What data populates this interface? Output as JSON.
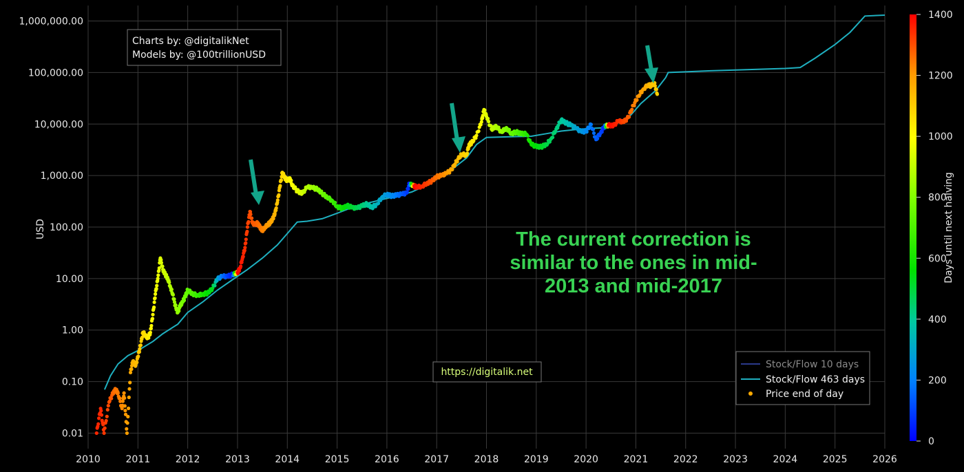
{
  "chart_data": {
    "type": "scatter",
    "title": "",
    "xlabel": "",
    "ylabel": "USD",
    "xlim": [
      2010,
      2026
    ],
    "ylim": [
      0.005,
      2000000
    ],
    "y_scale": "log",
    "grid": true,
    "x_ticks": [
      "2010",
      "2011",
      "2012",
      "2013",
      "2014",
      "2015",
      "2016",
      "2017",
      "2018",
      "2019",
      "2020",
      "2021",
      "2022",
      "2023",
      "2024",
      "2025",
      "2026"
    ],
    "y_ticks": [
      {
        "value": 0.01,
        "label": "0.01"
      },
      {
        "value": 0.1,
        "label": "0.10"
      },
      {
        "value": 1,
        "label": "1.00"
      },
      {
        "value": 10,
        "label": "10.00"
      },
      {
        "value": 100,
        "label": "100.00"
      },
      {
        "value": 1000,
        "label": "1,000.00"
      },
      {
        "value": 10000,
        "label": "10,000.00"
      },
      {
        "value": 100000,
        "label": "100,000.00"
      },
      {
        "value": 1000000,
        "label": "1,000,000.00"
      }
    ],
    "colorbar": {
      "title": "Days until next halving",
      "range": [
        0,
        1400
      ],
      "ticks": [
        0,
        200,
        400,
        600,
        800,
        1000,
        1200,
        1400
      ],
      "colorscale": [
        "#0000ff",
        "#0080ff",
        "#00c8a0",
        "#00e000",
        "#80ff00",
        "#ffff00",
        "#ff9900",
        "#ff0000"
      ]
    },
    "legend": {
      "position": "bottom-right",
      "entries": [
        {
          "name": "Stock/Flow 10 days",
          "color": "#2b3a8c",
          "kind": "line"
        },
        {
          "name": "Stock/Flow 463 days",
          "color": "#1fb0c0",
          "kind": "line"
        },
        {
          "name": "Price end of day",
          "color": "#ffaa00",
          "kind": "dot"
        }
      ]
    },
    "series": [
      {
        "name": "Stock/Flow 463 days",
        "kind": "line",
        "color": "#1fb0c0",
        "points": [
          [
            2010.33,
            0.07
          ],
          [
            2010.45,
            0.13
          ],
          [
            2010.6,
            0.22
          ],
          [
            2010.8,
            0.32
          ],
          [
            2011.0,
            0.4
          ],
          [
            2011.3,
            0.6
          ],
          [
            2011.5,
            0.85
          ],
          [
            2011.8,
            1.3
          ],
          [
            2012.0,
            2.2
          ],
          [
            2012.3,
            3.5
          ],
          [
            2012.6,
            6.0
          ],
          [
            2012.9,
            9.5
          ],
          [
            2013.2,
            15
          ],
          [
            2013.5,
            25
          ],
          [
            2013.8,
            45
          ],
          [
            2014.0,
            75
          ],
          [
            2014.2,
            125
          ],
          [
            2014.4,
            130
          ],
          [
            2014.7,
            145
          ],
          [
            2015.0,
            185
          ],
          [
            2015.3,
            240
          ],
          [
            2015.6,
            290
          ],
          [
            2015.9,
            340
          ],
          [
            2016.2,
            400
          ],
          [
            2016.5,
            480
          ],
          [
            2016.8,
            650
          ],
          [
            2017.0,
            850
          ],
          [
            2017.3,
            1300
          ],
          [
            2017.6,
            2200
          ],
          [
            2017.8,
            4000
          ],
          [
            2018.0,
            5500
          ],
          [
            2018.3,
            5600
          ],
          [
            2018.6,
            5700
          ],
          [
            2018.9,
            5800
          ],
          [
            2019.2,
            6500
          ],
          [
            2019.5,
            7300
          ],
          [
            2019.8,
            7800
          ],
          [
            2020.0,
            8100
          ],
          [
            2020.2,
            8300
          ],
          [
            2020.4,
            8500
          ],
          [
            2020.6,
            10000
          ],
          [
            2020.9,
            15000
          ],
          [
            2021.1,
            25000
          ],
          [
            2021.4,
            45000
          ],
          [
            2021.6,
            80000
          ],
          [
            2021.65,
            100000
          ],
          [
            2022.0,
            103000
          ],
          [
            2022.5,
            108000
          ],
          [
            2023.0,
            112000
          ],
          [
            2023.5,
            116000
          ],
          [
            2024.0,
            120000
          ],
          [
            2024.3,
            125000
          ],
          [
            2024.6,
            190000
          ],
          [
            2025.0,
            350000
          ],
          [
            2025.3,
            600000
          ],
          [
            2025.6,
            1250000
          ],
          [
            2026.0,
            1300000
          ]
        ]
      },
      {
        "name": "Price end of day",
        "kind": "scatter",
        "points": [
          [
            2010.17,
            0.01,
            1350
          ],
          [
            2010.25,
            0.03,
            1350
          ],
          [
            2010.32,
            0.01,
            1330
          ],
          [
            2010.42,
            0.04,
            1300
          ],
          [
            2010.5,
            0.06,
            1270
          ],
          [
            2010.55,
            0.07,
            1250
          ],
          [
            2010.6,
            0.06,
            1240
          ],
          [
            2010.68,
            0.03,
            1220
          ],
          [
            2010.72,
            0.06,
            1210
          ],
          [
            2010.78,
            0.01,
            1190
          ],
          [
            2010.85,
            0.15,
            1170
          ],
          [
            2010.9,
            0.25,
            1150
          ],
          [
            2010.95,
            0.2,
            1140
          ],
          [
            2011.0,
            0.3,
            1120
          ],
          [
            2011.05,
            0.5,
            1100
          ],
          [
            2011.1,
            0.9,
            1080
          ],
          [
            2011.15,
            0.8,
            1060
          ],
          [
            2011.2,
            0.7,
            1040
          ],
          [
            2011.25,
            0.9,
            1020
          ],
          [
            2011.3,
            2.0,
            1000
          ],
          [
            2011.35,
            5.0,
            980
          ],
          [
            2011.4,
            10.0,
            970
          ],
          [
            2011.45,
            25.0,
            950
          ],
          [
            2011.5,
            15.0,
            930
          ],
          [
            2011.55,
            12.0,
            920
          ],
          [
            2011.6,
            10.0,
            900
          ],
          [
            2011.65,
            7.0,
            880
          ],
          [
            2011.7,
            5.0,
            860
          ],
          [
            2011.75,
            3.0,
            840
          ],
          [
            2011.8,
            2.2,
            830
          ],
          [
            2011.85,
            3.0,
            810
          ],
          [
            2011.9,
            3.5,
            790
          ],
          [
            2011.95,
            4.5,
            770
          ],
          [
            2012.0,
            6.0,
            750
          ],
          [
            2012.1,
            5.0,
            720
          ],
          [
            2012.2,
            4.8,
            680
          ],
          [
            2012.3,
            5.0,
            640
          ],
          [
            2012.4,
            5.2,
            600
          ],
          [
            2012.5,
            6.5,
            560
          ],
          [
            2012.6,
            10.0,
            300
          ],
          [
            2012.7,
            11.0,
            180
          ],
          [
            2012.8,
            11.0,
            100
          ],
          [
            2012.9,
            12.0,
            40
          ],
          [
            2013.0,
            13.0,
            1400
          ],
          [
            2013.05,
            16.0,
            1380
          ],
          [
            2013.1,
            25.0,
            1360
          ],
          [
            2013.15,
            40.0,
            1340
          ],
          [
            2013.2,
            100.0,
            1320
          ],
          [
            2013.25,
            200.0,
            1300
          ],
          [
            2013.3,
            120.0,
            1290
          ],
          [
            2013.35,
            110.0,
            1280
          ],
          [
            2013.4,
            120.0,
            1270
          ],
          [
            2013.45,
            100.0,
            1250
          ],
          [
            2013.5,
            85.0,
            1230
          ],
          [
            2013.55,
            100.0,
            1220
          ],
          [
            2013.6,
            110.0,
            1200
          ],
          [
            2013.65,
            120.0,
            1190
          ],
          [
            2013.7,
            140.0,
            1170
          ],
          [
            2013.75,
            180.0,
            1150
          ],
          [
            2013.8,
            300.0,
            1120
          ],
          [
            2013.85,
            600.0,
            1100
          ],
          [
            2013.9,
            1150.0,
            1080
          ],
          [
            2013.95,
            900.0,
            1060
          ],
          [
            2014.0,
            800.0,
            1040
          ],
          [
            2014.05,
            900.0,
            1020
          ],
          [
            2014.1,
            650.0,
            1000
          ],
          [
            2014.2,
            500.0,
            960
          ],
          [
            2014.3,
            450.0,
            930
          ],
          [
            2014.4,
            600.0,
            880
          ],
          [
            2014.5,
            580.0,
            850
          ],
          [
            2014.6,
            550.0,
            820
          ],
          [
            2014.7,
            450.0,
            780
          ],
          [
            2014.8,
            380.0,
            740
          ],
          [
            2014.9,
            330.0,
            700
          ],
          [
            2015.0,
            250.0,
            660
          ],
          [
            2015.1,
            230.0,
            620
          ],
          [
            2015.2,
            260.0,
            580
          ],
          [
            2015.3,
            240.0,
            540
          ],
          [
            2015.4,
            230.0,
            500
          ],
          [
            2015.5,
            260.0,
            460
          ],
          [
            2015.6,
            280.0,
            420
          ],
          [
            2015.7,
            240.0,
            380
          ],
          [
            2015.8,
            280.0,
            340
          ],
          [
            2015.9,
            380.0,
            300
          ],
          [
            2016.0,
            430.0,
            260
          ],
          [
            2016.1,
            400.0,
            230
          ],
          [
            2016.2,
            420.0,
            190
          ],
          [
            2016.3,
            430.0,
            150
          ],
          [
            2016.4,
            460.0,
            100
          ],
          [
            2016.45,
            700.0,
            50
          ],
          [
            2016.55,
            620.0,
            1400
          ],
          [
            2016.6,
            600.0,
            1380
          ],
          [
            2016.7,
            620.0,
            1350
          ],
          [
            2016.8,
            700.0,
            1320
          ],
          [
            2016.9,
            780.0,
            1290
          ],
          [
            2017.0,
            950.0,
            1250
          ],
          [
            2017.1,
            1000.0,
            1230
          ],
          [
            2017.2,
            1100.0,
            1200
          ],
          [
            2017.3,
            1300.0,
            1170
          ],
          [
            2017.4,
            1900.0,
            1140
          ],
          [
            2017.5,
            2600.0,
            1110
          ],
          [
            2017.6,
            2500.0,
            1080
          ],
          [
            2017.65,
            4000.0,
            1060
          ],
          [
            2017.7,
            4300.0,
            1050
          ],
          [
            2017.8,
            6000.0,
            1020
          ],
          [
            2017.9,
            11000.0,
            990
          ],
          [
            2017.95,
            19000.0,
            970
          ],
          [
            2018.0,
            14000.0,
            950
          ],
          [
            2018.1,
            8000.0,
            910
          ],
          [
            2018.2,
            9000.0,
            870
          ],
          [
            2018.3,
            7000.0,
            840
          ],
          [
            2018.4,
            8500.0,
            800
          ],
          [
            2018.5,
            6500.0,
            760
          ],
          [
            2018.6,
            7000.0,
            730
          ],
          [
            2018.7,
            6500.0,
            700
          ],
          [
            2018.8,
            6400.0,
            660
          ],
          [
            2018.9,
            4000.0,
            620
          ],
          [
            2019.0,
            3700.0,
            590
          ],
          [
            2019.1,
            3600.0,
            560
          ],
          [
            2019.2,
            4000.0,
            520
          ],
          [
            2019.3,
            5200.0,
            480
          ],
          [
            2019.4,
            8000.0,
            450
          ],
          [
            2019.5,
            12000.0,
            410
          ],
          [
            2019.6,
            10500.0,
            380
          ],
          [
            2019.7,
            9500.0,
            340
          ],
          [
            2019.8,
            8200.0,
            300
          ],
          [
            2019.9,
            7200.0,
            270
          ],
          [
            2020.0,
            7200.0,
            230
          ],
          [
            2020.1,
            9800.0,
            190
          ],
          [
            2020.2,
            5000.0,
            150
          ],
          [
            2020.3,
            7000.0,
            110
          ],
          [
            2020.37,
            9000.0,
            60
          ],
          [
            2020.45,
            9500.0,
            1400
          ],
          [
            2020.55,
            9300.0,
            1370
          ],
          [
            2020.65,
            11500.0,
            1340
          ],
          [
            2020.75,
            10800.0,
            1310
          ],
          [
            2020.85,
            13500.0,
            1280
          ],
          [
            2020.95,
            23000.0,
            1240
          ],
          [
            2021.05,
            35000.0,
            1210
          ],
          [
            2021.15,
            48000.0,
            1180
          ],
          [
            2021.25,
            58000.0,
            1150
          ],
          [
            2021.3,
            55000.0,
            1130
          ],
          [
            2021.37,
            63000.0,
            1110
          ],
          [
            2021.43,
            38000.0,
            1090
          ]
        ]
      }
    ]
  },
  "annotations": {
    "credits": [
      "Charts by: @digitalikNet",
      "Models by: @100trillionUSD"
    ],
    "note_lines": [
      "The current correction is",
      "similar to the ones in mid-",
      "2013 and mid-2017"
    ],
    "url": "https://digitalik.net",
    "arrow_color": "#13a58a"
  }
}
